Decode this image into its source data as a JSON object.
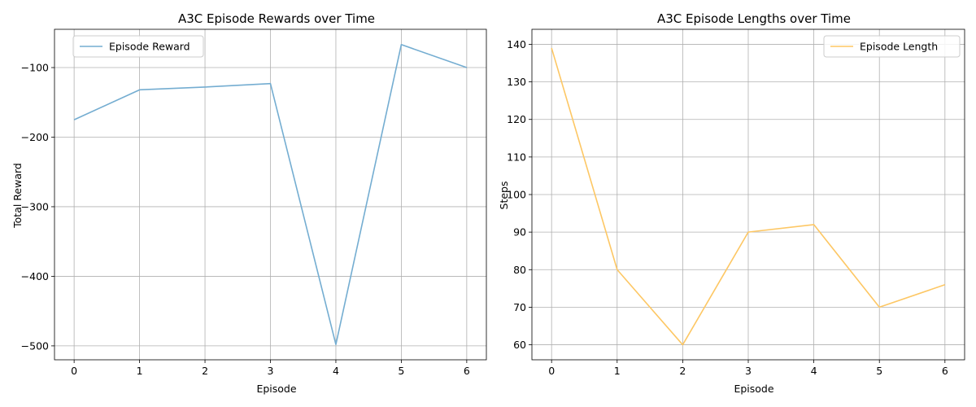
{
  "chart_data": [
    {
      "type": "line",
      "title": "A3C Episode Rewards over Time",
      "xlabel": "Episode",
      "ylabel": "Total Reward",
      "x": [
        0,
        1,
        2,
        3,
        4,
        5,
        6
      ],
      "xlim": [
        -0.3,
        6.3
      ],
      "ylim": [
        -520,
        -45
      ],
      "xticks": [
        "0",
        "1",
        "2",
        "3",
        "4",
        "5",
        "6"
      ],
      "yticks": [
        -500,
        -400,
        -300,
        -200,
        -100
      ],
      "ytick_labels": [
        "−500",
        "−400",
        "−300",
        "−200",
        "−100"
      ],
      "grid": true,
      "legend_position": "upper left",
      "series": [
        {
          "name": "Episode Reward",
          "color": "#74add1",
          "values": [
            -175,
            -132,
            -128,
            -123,
            -498,
            -67,
            -100
          ]
        }
      ]
    },
    {
      "type": "line",
      "title": "A3C Episode Lengths over Time",
      "xlabel": "Episode",
      "ylabel": "Steps",
      "x": [
        0,
        1,
        2,
        3,
        4,
        5,
        6
      ],
      "xlim": [
        -0.3,
        6.3
      ],
      "ylim": [
        56,
        144
      ],
      "xticks": [
        "0",
        "1",
        "2",
        "3",
        "4",
        "5",
        "6"
      ],
      "yticks": [
        60,
        70,
        80,
        90,
        100,
        110,
        120,
        130,
        140
      ],
      "ytick_labels": [
        "60",
        "70",
        "80",
        "90",
        "100",
        "110",
        "120",
        "130",
        "140"
      ],
      "grid": true,
      "legend_position": "upper right",
      "series": [
        {
          "name": "Episode Length",
          "color": "#fdc764",
          "values": [
            139,
            80,
            60,
            90,
            92,
            70,
            76
          ]
        }
      ]
    }
  ]
}
